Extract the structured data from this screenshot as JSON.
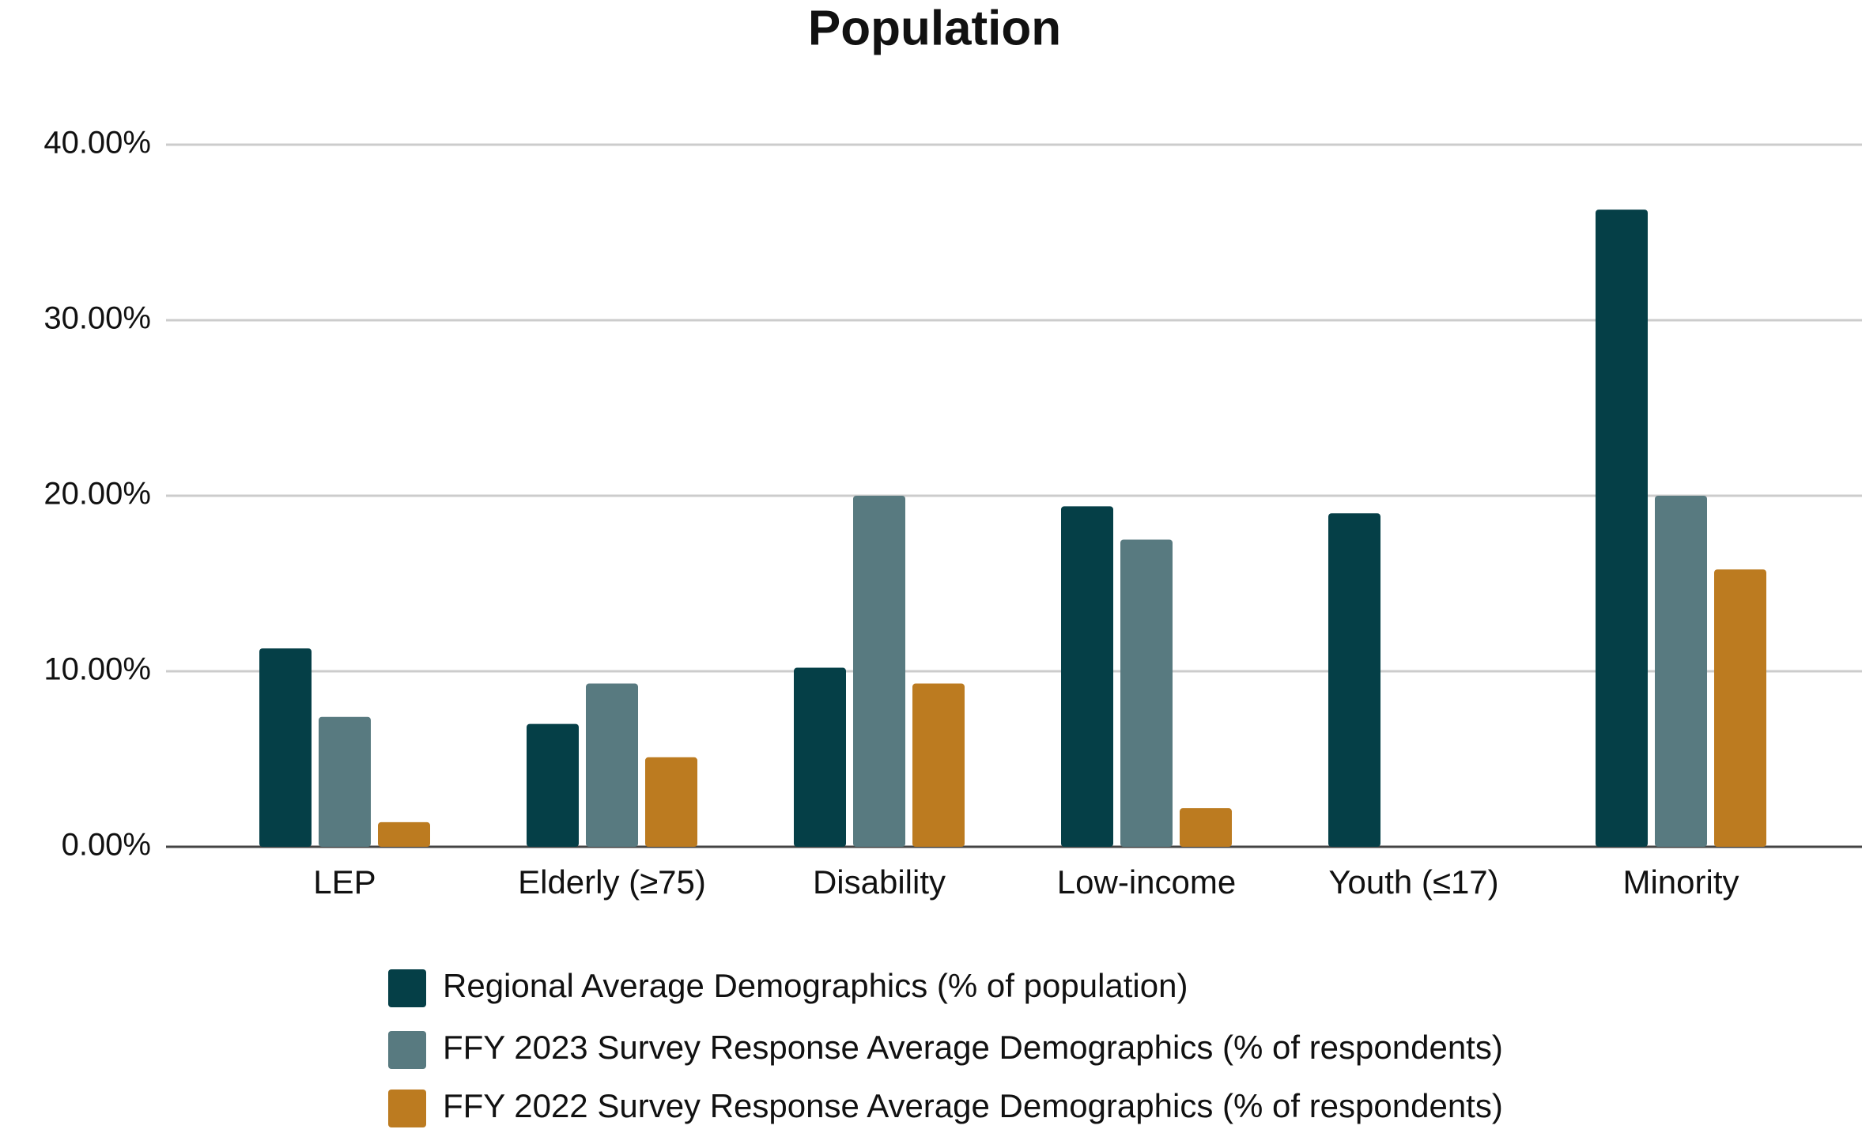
{
  "chart_data": {
    "type": "bar",
    "title": "Population",
    "categories": [
      "LEP",
      "Elderly (≥75)",
      "Disability",
      "Low-income",
      "Youth (≤17)",
      "Minority"
    ],
    "series": [
      {
        "name": "Regional Average Demographics (% of population)",
        "color": "#053f47",
        "values": [
          11.3,
          7.0,
          10.2,
          19.4,
          19.0,
          36.3
        ]
      },
      {
        "name": "FFY 2023 Survey Response Average Demographics (% of respondents)",
        "color": "#587a80",
        "values": [
          7.4,
          9.3,
          20.0,
          17.5,
          0,
          20.0
        ]
      },
      {
        "name": "FFY 2022 Survey Response Average Demographics (% of respondents)",
        "color": "#bc7b20",
        "values": [
          1.4,
          5.1,
          9.3,
          2.2,
          0,
          15.8
        ]
      }
    ],
    "ylim": [
      0,
      40
    ],
    "yticks": [
      {
        "value": 0,
        "label": "0.00%"
      },
      {
        "value": 10,
        "label": "10.00%"
      },
      {
        "value": 20,
        "label": "20.00%"
      },
      {
        "value": 30,
        "label": "30.00%"
      },
      {
        "value": 40,
        "label": "40.00%"
      }
    ],
    "grid": true
  }
}
